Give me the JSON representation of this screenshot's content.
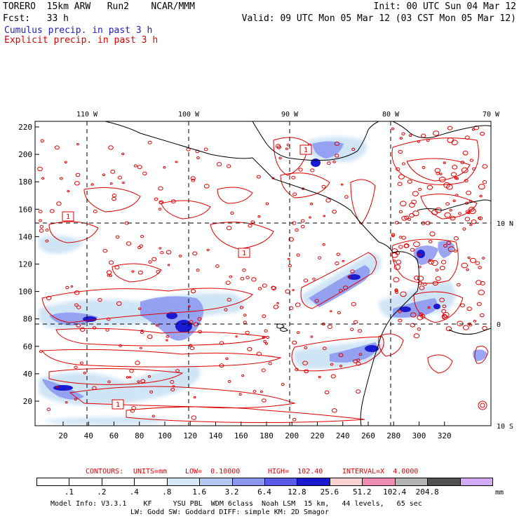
{
  "header": {
    "line1_left": "TORERO  15km ARW   Run2    NCAR/MMM",
    "line1_right": "Init: 00 UTC Sun 04 Mar 12",
    "line2_left": "Fcst:   33 h",
    "line2_right": "Valid: 09 UTC Mon 05 Mar 12 (03 CST Mon 05 Mar 12)",
    "legend_cumulus": "Cumulus precip. in past 3 h",
    "legend_explicit": "Explicit precip. in past 3 h"
  },
  "map": {
    "top_lon_labels": [
      "110 W",
      "100 W",
      "90 W",
      "80 W",
      "70 W"
    ],
    "left_y_labels": [
      "220",
      "200",
      "180",
      "160",
      "140",
      "120",
      "100",
      "80",
      "60",
      "40",
      "20"
    ],
    "bottom_x_labels": [
      "20",
      "40",
      "60",
      "80",
      "100",
      "120",
      "140",
      "160",
      "180",
      "200",
      "220",
      "240",
      "260",
      "280",
      "300",
      "320"
    ],
    "right_lat_labels": [
      "10 N",
      "0",
      "10 S"
    ],
    "contour_labels": [
      "1",
      "1",
      "1",
      "1"
    ],
    "colors": {
      "explicit_contour": "#e00000",
      "coast": "#000000",
      "cumulus_light": "#cfe4f5",
      "cumulus_mid": "#8a96f0",
      "cumulus_dark": "#1a1ad0"
    }
  },
  "contours_note": {
    "contours": "CONTOURS:",
    "units": "UNITS=mm",
    "low": "LOW=  0.10000",
    "high": "HIGH=  102.40",
    "interval": "INTERVAL=X  4.0000"
  },
  "colorbar": {
    "labels": [
      ".1",
      ".2",
      ".4",
      ".8",
      "1.6",
      "3.2",
      "6.4",
      "12.8",
      "25.6",
      "51.2",
      "102.4",
      "204.8"
    ],
    "colors": [
      "#ffffff",
      "#ffffff",
      "#ffffff",
      "#ffffff",
      "#d6e8f5",
      "#b4c8f5",
      "#8a96f0",
      "#5a5ae8",
      "#1a1ad0",
      "#fad2d2",
      "#f08cb4",
      "#b4b4b4",
      "#505050",
      "#d2aaf5"
    ],
    "unit": "mm"
  },
  "footer": {
    "line1": "Model Info: V3.3.1    KF     YSU PBL  WDM 6class  Noah LSM  15 km,   44 levels,   65 sec",
    "line2": "LW: Godd SW: Goddard DIFF: simple KM: 2D Smagor"
  }
}
